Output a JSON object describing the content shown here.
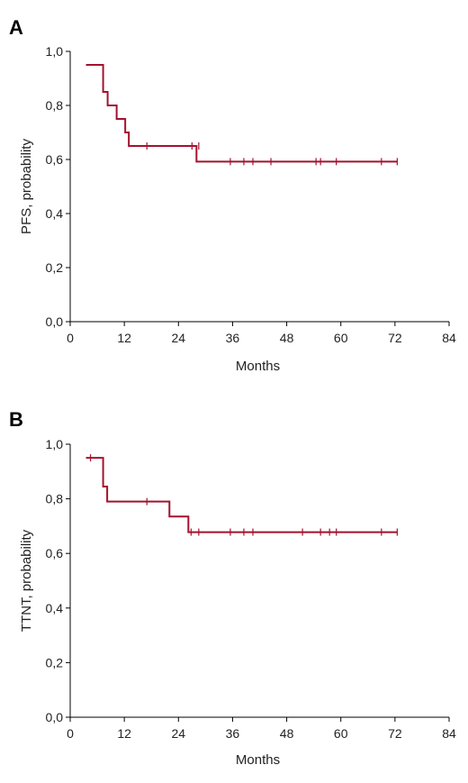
{
  "chart_data": [
    {
      "type": "line",
      "panel_label": "A",
      "xlabel": "Months",
      "ylabel": "PFS, probability",
      "xlim": [
        0,
        84
      ],
      "ylim": [
        0,
        1.0
      ],
      "x_ticks": [
        0,
        12,
        24,
        36,
        48,
        60,
        72,
        84
      ],
      "y_ticks": [
        0.0,
        0.2,
        0.4,
        0.6,
        0.8,
        1.0
      ],
      "y_tick_labels": [
        "0,0",
        "0,2",
        "0,4",
        "0,6",
        "0,8",
        "1,0"
      ],
      "x_tick_labels": [
        "0",
        "12",
        "24",
        "36",
        "48",
        "60",
        "72",
        "84"
      ],
      "grid": false,
      "series": [
        {
          "color": "#a3122e",
          "steps": [
            {
              "x": 3.5,
              "y": 0.95
            },
            {
              "x": 7.3,
              "y": 0.85
            },
            {
              "x": 8.3,
              "y": 0.8
            },
            {
              "x": 10.3,
              "y": 0.75
            },
            {
              "x": 12.2,
              "y": 0.7
            },
            {
              "x": 13.0,
              "y": 0.65
            },
            {
              "x": 28.0,
              "y": 0.592
            }
          ],
          "end_x": 72.5,
          "censored": [
            {
              "x": 17,
              "y": 0.65
            },
            {
              "x": 27,
              "y": 0.65
            },
            {
              "x": 28.5,
              "y": 0.65
            },
            {
              "x": 35.5,
              "y": 0.592
            },
            {
              "x": 38.5,
              "y": 0.592
            },
            {
              "x": 40.5,
              "y": 0.592
            },
            {
              "x": 44.5,
              "y": 0.592
            },
            {
              "x": 54.5,
              "y": 0.592
            },
            {
              "x": 55.5,
              "y": 0.592
            },
            {
              "x": 59,
              "y": 0.592
            },
            {
              "x": 69,
              "y": 0.592
            },
            {
              "x": 72.5,
              "y": 0.592
            }
          ]
        }
      ]
    },
    {
      "type": "line",
      "panel_label": "B",
      "xlabel": "Months",
      "ylabel": "TTNT, probability",
      "xlim": [
        0,
        84
      ],
      "ylim": [
        0,
        1.0
      ],
      "x_ticks": [
        0,
        12,
        24,
        36,
        48,
        60,
        72,
        84
      ],
      "y_ticks": [
        0.0,
        0.2,
        0.4,
        0.6,
        0.8,
        1.0
      ],
      "y_tick_labels": [
        "0,0",
        "0,2",
        "0,4",
        "0,6",
        "0,8",
        "1,0"
      ],
      "x_tick_labels": [
        "0",
        "12",
        "24",
        "36",
        "48",
        "60",
        "72",
        "84"
      ],
      "grid": false,
      "series": [
        {
          "color": "#a3122e",
          "steps": [
            {
              "x": 3.5,
              "y": 0.95
            },
            {
              "x": 7.3,
              "y": 0.845
            },
            {
              "x": 8.2,
              "y": 0.79
            },
            {
              "x": 22.0,
              "y": 0.735
            },
            {
              "x": 26.2,
              "y": 0.678
            }
          ],
          "end_x": 72.5,
          "censored": [
            {
              "x": 4.5,
              "y": 0.95
            },
            {
              "x": 17,
              "y": 0.79
            },
            {
              "x": 26.8,
              "y": 0.678
            },
            {
              "x": 28.5,
              "y": 0.678
            },
            {
              "x": 35.5,
              "y": 0.678
            },
            {
              "x": 38.5,
              "y": 0.678
            },
            {
              "x": 40.5,
              "y": 0.678
            },
            {
              "x": 51.5,
              "y": 0.678
            },
            {
              "x": 55.5,
              "y": 0.678
            },
            {
              "x": 57.5,
              "y": 0.678
            },
            {
              "x": 59,
              "y": 0.678
            },
            {
              "x": 69,
              "y": 0.678
            },
            {
              "x": 72.5,
              "y": 0.678
            }
          ]
        }
      ]
    }
  ]
}
